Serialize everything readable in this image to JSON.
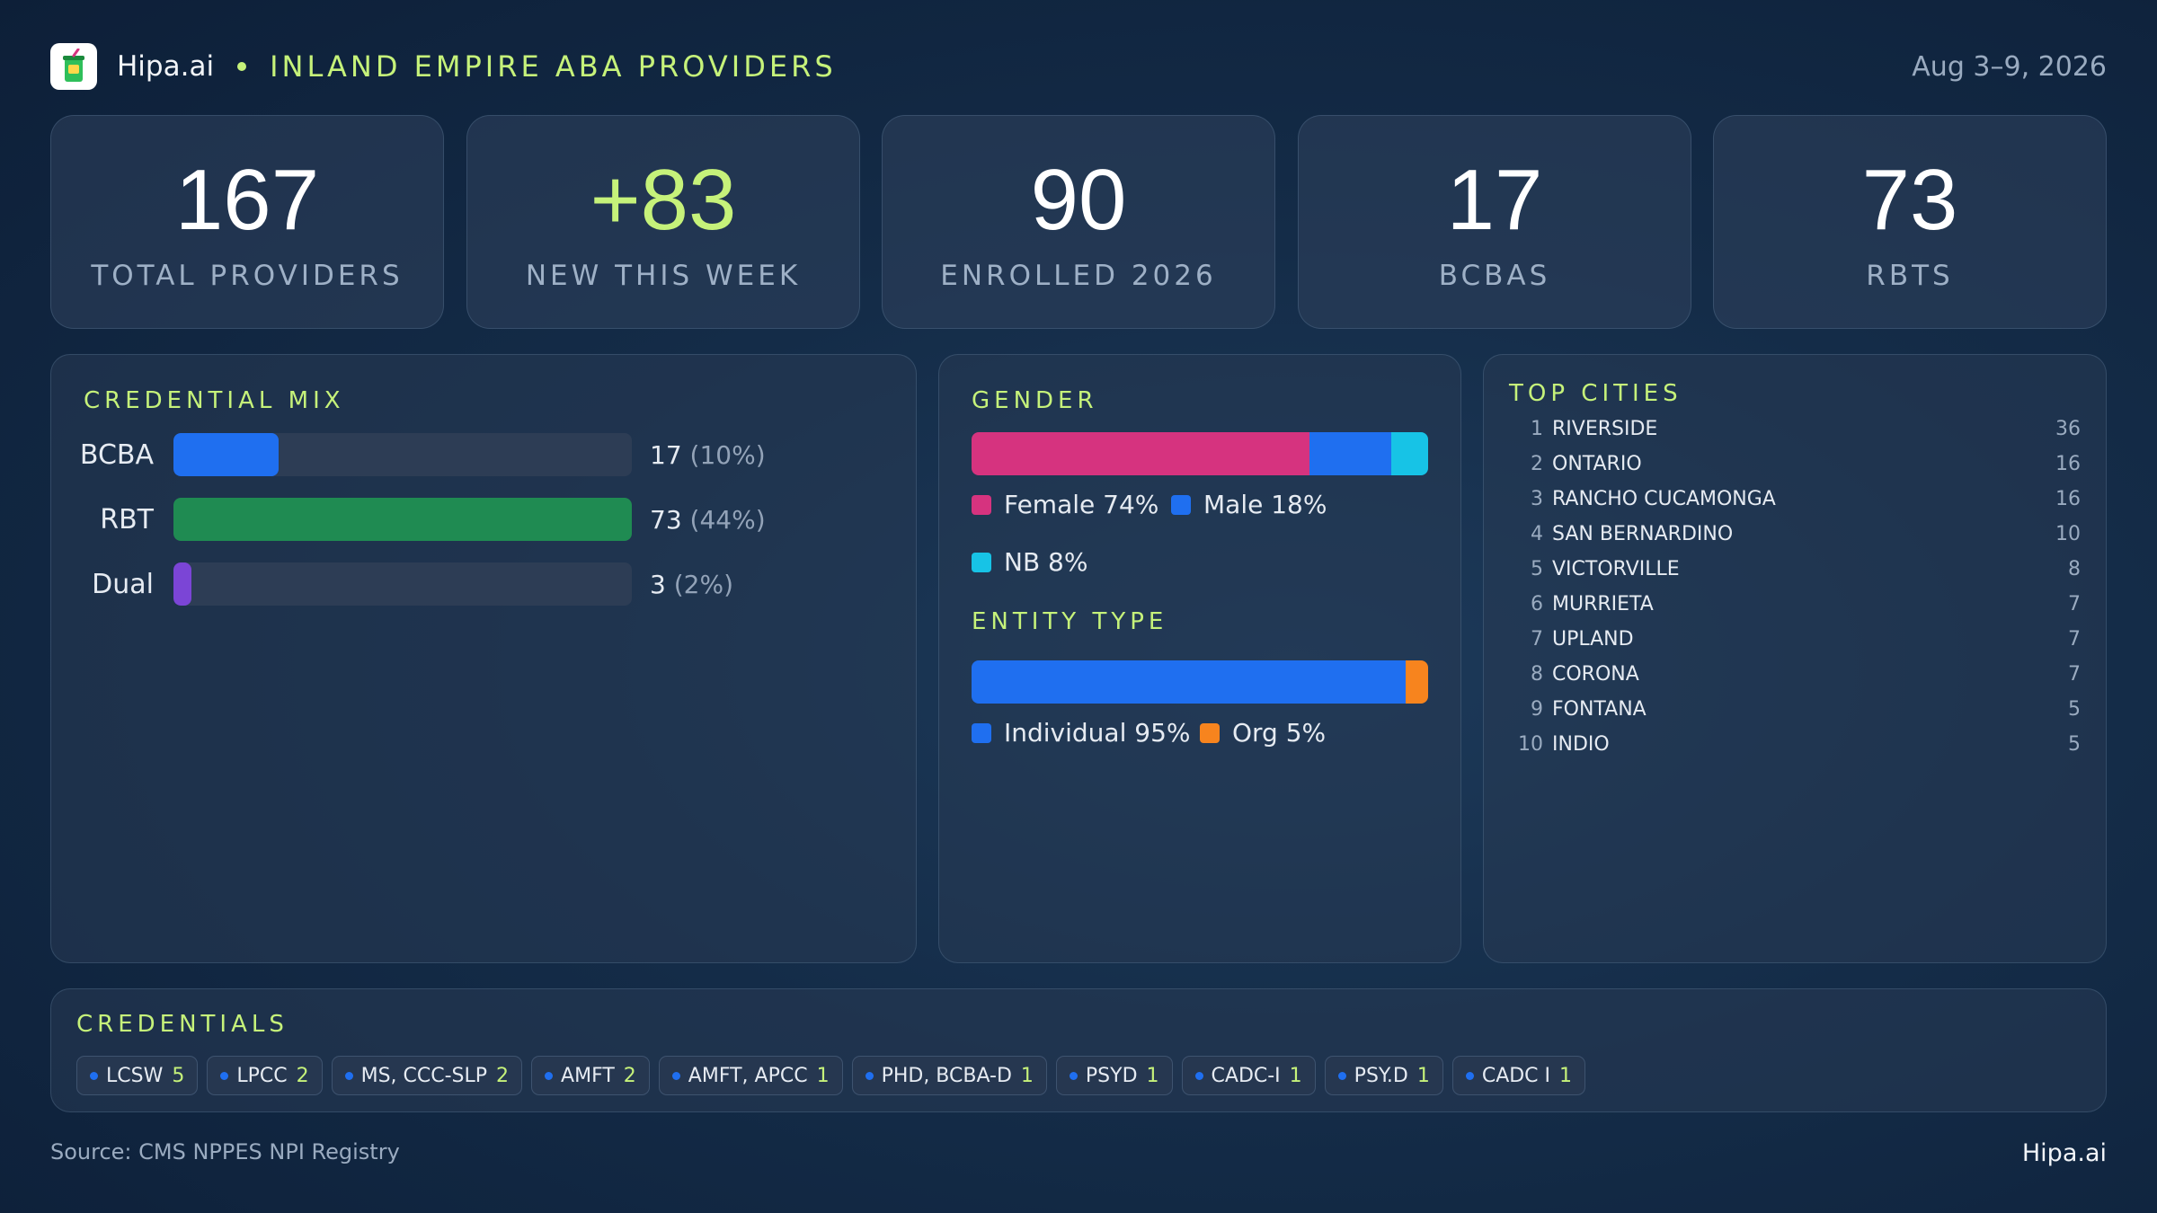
{
  "header": {
    "brand": "Hipa.ai",
    "title": "INLAND EMPIRE ABA PROVIDERS",
    "date_range": "Aug 3–9, 2026",
    "logo_icon": "drink-cup-icon"
  },
  "stats": [
    {
      "value": "167",
      "label": "TOTAL  PROVIDERS"
    },
    {
      "value": "+83",
      "label": "NEW THIS WEEK"
    },
    {
      "value": "90",
      "label": "ENROLLED 2026"
    },
    {
      "value": "17",
      "label": "BCBAS"
    },
    {
      "value": "73",
      "label": "RBTS"
    }
  ],
  "credential_mix": {
    "title": "CREDENTIAL  MIX",
    "rows": [
      {
        "label": "BCBA",
        "count": "17",
        "pct": "(10%)",
        "fill": 0.23,
        "color": "#1f6ff0"
      },
      {
        "label": "RBT",
        "count": "73",
        "pct": "(44%)",
        "fill": 1.0,
        "color": "#1f8b52"
      },
      {
        "label": "Dual",
        "count": "3",
        "pct": "(2%)",
        "fill": 0.04,
        "color": "#7b45d6"
      }
    ]
  },
  "gender": {
    "title": "GENDER",
    "segments": [
      {
        "label": "Female 74%",
        "share": 0.74,
        "color": "#d6337f"
      },
      {
        "label": "Male 18%",
        "share": 0.18,
        "color": "#1f6ff0"
      },
      {
        "label": "NB 8%",
        "share": 0.08,
        "color": "#17c3e6"
      }
    ]
  },
  "entity_type": {
    "title": "ENTITY TYPE",
    "segments": [
      {
        "label": "Individual 95%",
        "share": 0.95,
        "color": "#1f6ff0"
      },
      {
        "label": "Org 5%",
        "share": 0.05,
        "color": "#f7841e"
      }
    ]
  },
  "top_cities": {
    "title": "TOP CITIES",
    "rows": [
      {
        "rank": "1",
        "name": "RIVERSIDE",
        "count": "36"
      },
      {
        "rank": "2",
        "name": "ONTARIO",
        "count": "16"
      },
      {
        "rank": "3",
        "name": "RANCHO CUCAMONGA",
        "count": "16"
      },
      {
        "rank": "4",
        "name": "SAN BERNARDINO",
        "count": "10"
      },
      {
        "rank": "5",
        "name": "VICTORVILLE",
        "count": "8"
      },
      {
        "rank": "6",
        "name": "MURRIETA",
        "count": "7"
      },
      {
        "rank": "7",
        "name": "UPLAND",
        "count": "7"
      },
      {
        "rank": "8",
        "name": "CORONA",
        "count": "7"
      },
      {
        "rank": "9",
        "name": "FONTANA",
        "count": "5"
      },
      {
        "rank": "10",
        "name": "INDIO",
        "count": "5"
      }
    ]
  },
  "credentials": {
    "title": "CREDENTIALS",
    "chips": [
      {
        "label": "LCSW",
        "count": "5"
      },
      {
        "label": "LPCC",
        "count": "2"
      },
      {
        "label": "MS, CCC-SLP",
        "count": "2"
      },
      {
        "label": "AMFT",
        "count": "2"
      },
      {
        "label": "AMFT, APCC",
        "count": "1"
      },
      {
        "label": "PHD, BCBA-D",
        "count": "1"
      },
      {
        "label": "PSYD",
        "count": "1"
      },
      {
        "label": "CADC-I",
        "count": "1"
      },
      {
        "label": "PSY.D",
        "count": "1"
      },
      {
        "label": "CADC I",
        "count": "1"
      }
    ]
  },
  "footer": {
    "source": "Source: CMS NPPES NPI Registry",
    "brand": "Hipa.ai"
  }
}
